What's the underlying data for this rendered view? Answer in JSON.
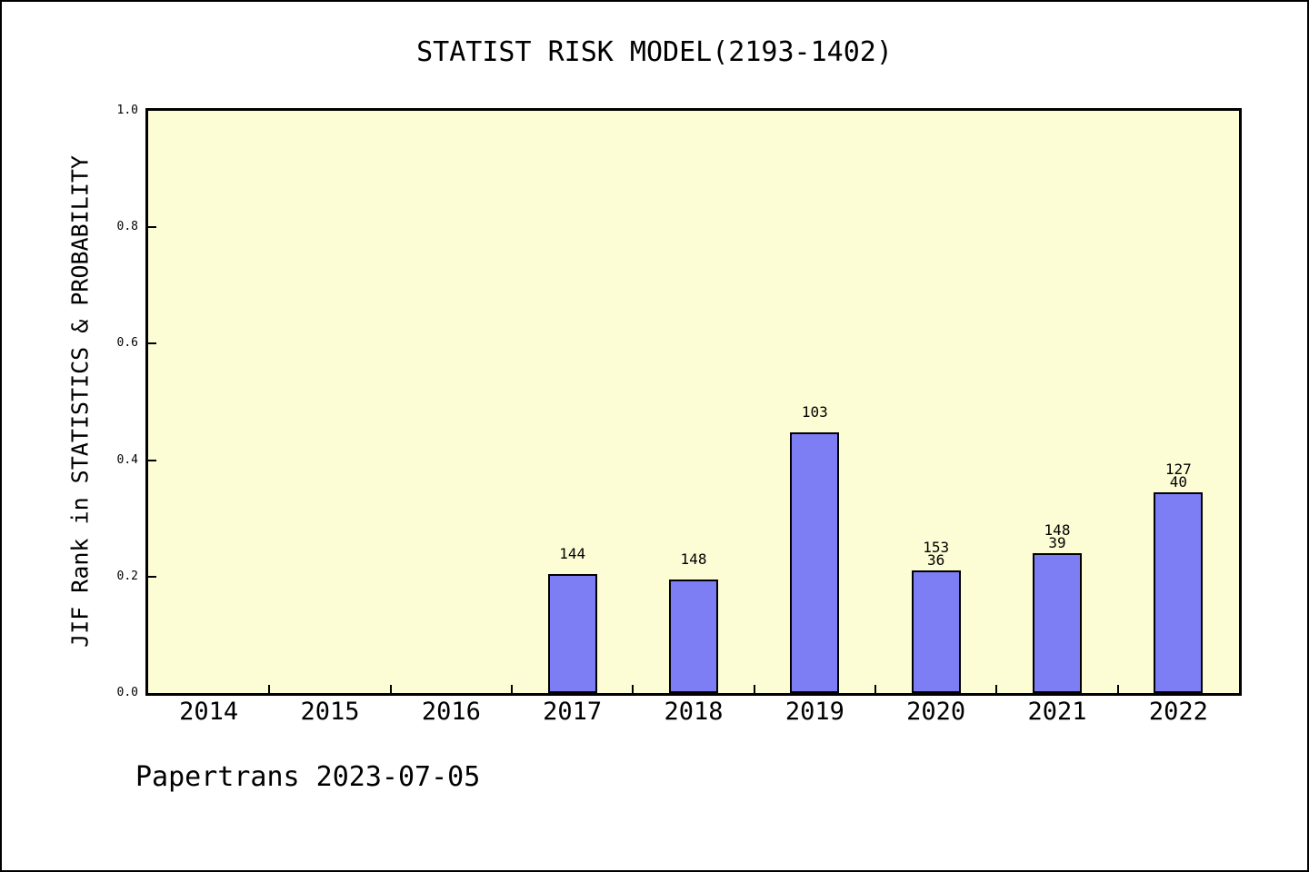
{
  "title": "STATIST RISK MODEL(2193-1402)",
  "footer": "Papertrans 2023-07-05",
  "colors": {
    "page_background": "#FFFFFF",
    "plot_background": "#FCFCD5",
    "bar_fill": "#7E7EF4",
    "bar_border": "#000000",
    "axis": "#000000",
    "text": "#000000"
  },
  "chart_data": {
    "type": "bar",
    "title": "STATIST RISK MODEL(2193-1402)",
    "xlabel": "",
    "ylabel": "JIF Rank in STATISTICS & PROBABILITY",
    "categories": [
      "2014",
      "2015",
      "2016",
      "2017",
      "2018",
      "2019",
      "2020",
      "2021",
      "2022"
    ],
    "values": [
      0,
      0,
      0,
      0.205,
      0.195,
      0.448,
      0.21,
      0.24,
      0.345
    ],
    "bar_labels": [
      [],
      [],
      [],
      [
        "144"
      ],
      [
        "148"
      ],
      [
        "103"
      ],
      [
        "153",
        "36"
      ],
      [
        "148",
        "39"
      ],
      [
        "127",
        "40"
      ]
    ],
    "ylim": [
      0.0,
      1.0
    ],
    "ytick_labels": [
      "0.0",
      "0.2",
      "0.4",
      "0.6",
      "0.8",
      "1.0"
    ],
    "grid": false,
    "legend": null
  }
}
